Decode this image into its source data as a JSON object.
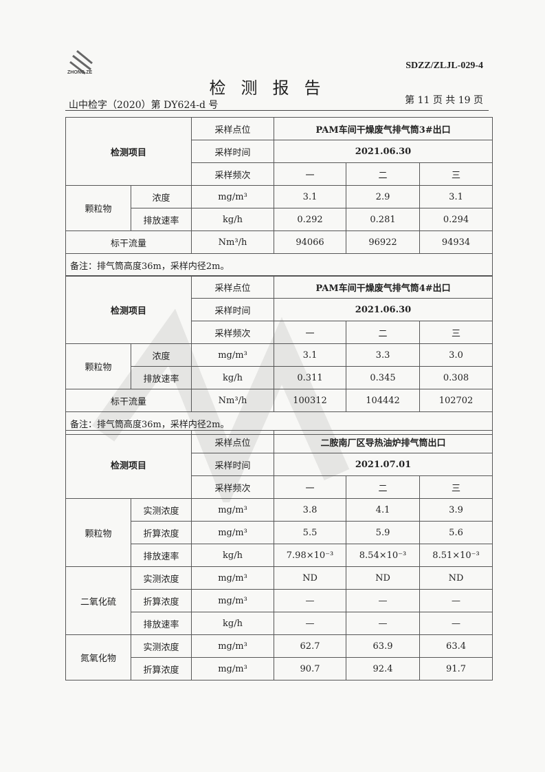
{
  "header": {
    "logo_text": "ZHONG ZE",
    "doc_code": "SDZZ/ZLJL-029-4",
    "title": "检测报告",
    "report_no": "山中检字（2020）第 DY624-d 号",
    "page": "第 11 页  共 19 页"
  },
  "sections": [
    {
      "item_label": "检测项目",
      "point_label": "采样点位",
      "point": "PAM车间干燥废气排气筒3#出口",
      "time_label": "采样时间",
      "time": "2021.06.30",
      "freq_label": "采样频次",
      "freqs": [
        "一",
        "二",
        "三"
      ],
      "groups": [
        {
          "name": "颗粒物",
          "rows": [
            {
              "item": "浓度",
              "unit": "mg/m³",
              "values": [
                "3.1",
                "2.9",
                "3.1"
              ]
            },
            {
              "item": "排放速率",
              "unit": "kg/h",
              "values": [
                "0.292",
                "0.281",
                "0.294"
              ]
            }
          ]
        }
      ],
      "flow": {
        "label": "标干流量",
        "unit": "Nm³/h",
        "values": [
          "94066",
          "96922",
          "94934"
        ]
      },
      "note": "备注：排气筒高度36m，采样内径2m。"
    },
    {
      "item_label": "检测项目",
      "point_label": "采样点位",
      "point": "PAM车间干燥废气排气筒4#出口",
      "time_label": "采样时间",
      "time": "2021.06.30",
      "freq_label": "采样频次",
      "freqs": [
        "一",
        "二",
        "三"
      ],
      "groups": [
        {
          "name": "颗粒物",
          "rows": [
            {
              "item": "浓度",
              "unit": "mg/m³",
              "values": [
                "3.1",
                "3.3",
                "3.0"
              ]
            },
            {
              "item": "排放速率",
              "unit": "kg/h",
              "values": [
                "0.311",
                "0.345",
                "0.308"
              ]
            }
          ]
        }
      ],
      "flow": {
        "label": "标干流量",
        "unit": "Nm³/h",
        "values": [
          "100312",
          "104442",
          "102702"
        ]
      },
      "note": "备注：排气筒高度36m，采样内径2m。"
    },
    {
      "item_label": "检测项目",
      "point_label": "采样点位",
      "point": "二胺南厂区导热油炉排气筒出口",
      "time_label": "采样时间",
      "time": "2021.07.01",
      "freq_label": "采样频次",
      "freqs": [
        "一",
        "二",
        "三"
      ],
      "groups": [
        {
          "name": "颗粒物",
          "rows": [
            {
              "item": "实测浓度",
              "unit": "mg/m³",
              "values": [
                "3.8",
                "4.1",
                "3.9"
              ]
            },
            {
              "item": "折算浓度",
              "unit": "mg/m³",
              "values": [
                "5.5",
                "5.9",
                "5.6"
              ]
            },
            {
              "item": "排放速率",
              "unit": "kg/h",
              "values": [
                "7.98×10⁻³",
                "8.54×10⁻³",
                "8.51×10⁻³"
              ]
            }
          ]
        },
        {
          "name": "二氧化硫",
          "rows": [
            {
              "item": "实测浓度",
              "unit": "mg/m³",
              "values": [
                "ND",
                "ND",
                "ND"
              ]
            },
            {
              "item": "折算浓度",
              "unit": "mg/m³",
              "values": [
                "—",
                "—",
                "—"
              ]
            },
            {
              "item": "排放速率",
              "unit": "kg/h",
              "values": [
                "—",
                "—",
                "—"
              ]
            }
          ]
        },
        {
          "name": "氮氧化物",
          "rows": [
            {
              "item": "实测浓度",
              "unit": "mg/m³",
              "values": [
                "62.7",
                "63.9",
                "63.4"
              ]
            },
            {
              "item": "折算浓度",
              "unit": "mg/m³",
              "values": [
                "90.7",
                "92.4",
                "91.7"
              ]
            }
          ]
        }
      ]
    }
  ]
}
